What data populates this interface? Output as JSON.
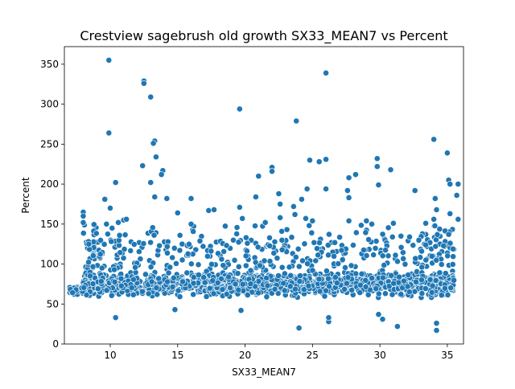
{
  "chart_data": {
    "type": "scatter",
    "title": "Crestview sagebrush old growth SX33_MEAN7 vs Percent",
    "xlabel": "SX33_MEAN7",
    "ylabel": "Percent",
    "xlim": [
      6.6,
      36.2
    ],
    "ylim": [
      0,
      372
    ],
    "x_ticks": [
      10,
      15,
      20,
      25,
      30,
      35
    ],
    "y_ticks": [
      0,
      50,
      100,
      150,
      200,
      250,
      300,
      350
    ],
    "grid": false,
    "legend": "none",
    "marker_color": "#1f77b4",
    "marker_edge_color": "#ffffff",
    "point_count": 2000,
    "points": [
      [
        9.9,
        355
      ],
      [
        12.5,
        329
      ],
      [
        12.5,
        326
      ],
      [
        26.0,
        339
      ],
      [
        13.0,
        309
      ],
      [
        19.6,
        294
      ],
      [
        23.8,
        279
      ],
      [
        9.9,
        264
      ],
      [
        34.0,
        256
      ],
      [
        13.3,
        254
      ],
      [
        13.2,
        251
      ],
      [
        35.0,
        239
      ],
      [
        13.4,
        234
      ],
      [
        24.8,
        230
      ],
      [
        25.5,
        228
      ],
      [
        26.0,
        231
      ],
      [
        29.8,
        232
      ],
      [
        12.4,
        223
      ],
      [
        29.8,
        222
      ],
      [
        30.8,
        218
      ],
      [
        13.9,
        217
      ],
      [
        13.8,
        212
      ],
      [
        27.7,
        208
      ],
      [
        28.2,
        212
      ],
      [
        22.0,
        221
      ],
      [
        22.0,
        216
      ],
      [
        21.0,
        210
      ],
      [
        10.4,
        202
      ],
      [
        13.0,
        202
      ],
      [
        35.1,
        205
      ],
      [
        35.2,
        200
      ],
      [
        35.8,
        200
      ],
      [
        26.0,
        194
      ],
      [
        29.9,
        199
      ],
      [
        32.6,
        192
      ],
      [
        24.6,
        194
      ],
      [
        27.6,
        192
      ],
      [
        22.5,
        188
      ],
      [
        9.6,
        181
      ],
      [
        13.3,
        184
      ],
      [
        16.0,
        182
      ],
      [
        14.2,
        182
      ],
      [
        20.8,
        184
      ],
      [
        24.2,
        181
      ],
      [
        27.7,
        183
      ],
      [
        34.1,
        182
      ],
      [
        35.7,
        186
      ],
      [
        10.0,
        170
      ],
      [
        17.3,
        167
      ],
      [
        17.7,
        168
      ],
      [
        19.6,
        171
      ],
      [
        22.6,
        175
      ],
      [
        23.6,
        172
      ],
      [
        8.0,
        165
      ],
      [
        8.0,
        160
      ],
      [
        11.0,
        155
      ],
      [
        11.2,
        156
      ],
      [
        15.0,
        164
      ],
      [
        34.2,
        168
      ],
      [
        35.2,
        163
      ],
      [
        10.6,
        152
      ],
      [
        8.0,
        152
      ],
      [
        21.5,
        152
      ],
      [
        22.6,
        158
      ],
      [
        24.5,
        157
      ],
      [
        29.0,
        154
      ],
      [
        31.0,
        151
      ],
      [
        34.0,
        156
      ],
      [
        35.8,
        156
      ],
      [
        33.4,
        151
      ],
      [
        27.7,
        154
      ],
      [
        23.7,
        162
      ],
      [
        19.8,
        157
      ],
      [
        16.0,
        150
      ],
      [
        25.0,
        154
      ],
      [
        29.4,
        150
      ],
      [
        33.4,
        124
      ],
      [
        10.3,
        93
      ],
      [
        10.4,
        33
      ],
      [
        24.0,
        20
      ],
      [
        26.2,
        28
      ],
      [
        26.2,
        33
      ],
      [
        29.9,
        37
      ],
      [
        30.2,
        31
      ],
      [
        31.3,
        22
      ],
      [
        34.2,
        26
      ],
      [
        34.2,
        17
      ],
      [
        14.8,
        43
      ],
      [
        19.7,
        42
      ]
    ]
  }
}
